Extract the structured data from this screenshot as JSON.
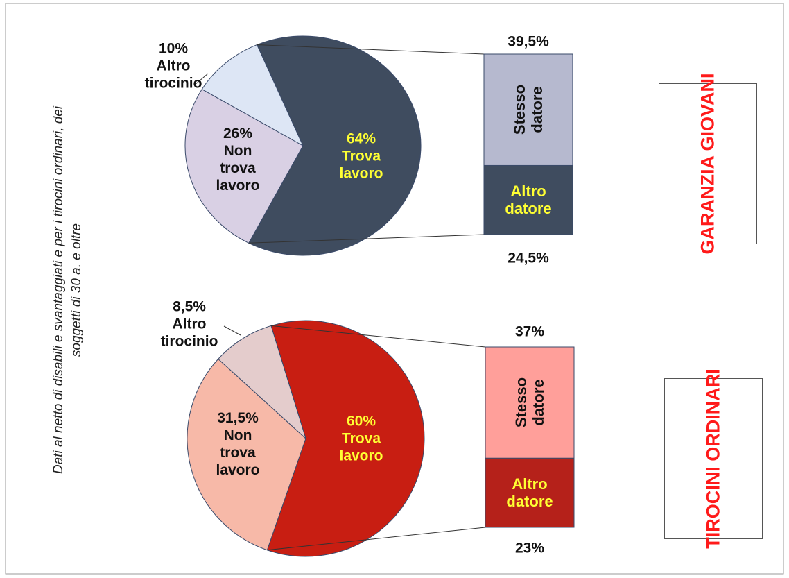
{
  "note_text": "Dati al netto di disabili e svantaggiati e per i tirocini ordinari, dei soggetti di 30 a. e oltre",
  "chart_data": [
    {
      "type": "pie",
      "title": "GARANZIA GIOVANI",
      "categories": [
        "Altro tirocinio",
        "Non trova lavoro",
        "Trova lavoro"
      ],
      "values": [
        10,
        26,
        64
      ],
      "value_labels": [
        "10%",
        "26%",
        "64%"
      ],
      "colors": [
        "#dde6f5",
        "#d9d0e4",
        "#3f4c5f"
      ],
      "breakdown": {
        "type": "bar",
        "categories": [
          "Stesso datore",
          "Altro datore"
        ],
        "values": [
          39.5,
          24.5
        ],
        "value_labels": [
          "39,5%",
          "24,5%"
        ],
        "colors": [
          "#b6b9cf",
          "#3f4c5f"
        ]
      }
    },
    {
      "type": "pie",
      "title": "TIROCINI ORDINARI",
      "categories": [
        "Altro tirocinio",
        "Non trova lavoro",
        "Trova lavoro"
      ],
      "values": [
        8.5,
        31.5,
        60
      ],
      "value_labels": [
        "8,5%",
        "31,5%",
        "60%"
      ],
      "colors": [
        "#e4cccc",
        "#f7b9a8",
        "#c81e12"
      ],
      "breakdown": {
        "type": "bar",
        "categories": [
          "Stesso datore",
          "Altro datore"
        ],
        "values": [
          37,
          23
        ],
        "value_labels": [
          "37%",
          "23%"
        ],
        "colors": [
          "#ff9f9a",
          "#b5211a"
        ]
      }
    }
  ]
}
